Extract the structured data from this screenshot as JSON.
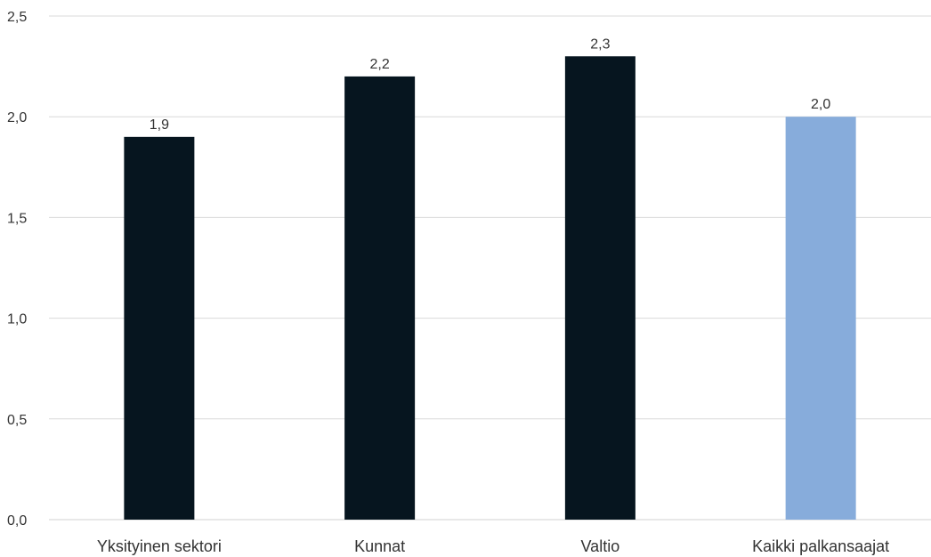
{
  "chart_data": {
    "type": "bar",
    "categories": [
      "Yksityinen sektori",
      "Kunnat",
      "Valtio",
      "Kaikki palkansaajat"
    ],
    "values": [
      1.9,
      2.2,
      2.3,
      2.0
    ],
    "value_labels": [
      "1,9",
      "2,2",
      "2,3",
      "2,0"
    ],
    "bar_colors": [
      "#06151f",
      "#06151f",
      "#06151f",
      "#87acdb"
    ],
    "ylim": [
      0,
      2.5
    ],
    "yticks": [
      0,
      0.5,
      1.0,
      1.5,
      2.0,
      2.5
    ],
    "ytick_labels": [
      "0,0",
      "0,5",
      "1,0",
      "1,5",
      "2,0",
      "2,5"
    ],
    "grid": true,
    "legend": "none",
    "title": "",
    "xlabel": "",
    "ylabel": ""
  }
}
